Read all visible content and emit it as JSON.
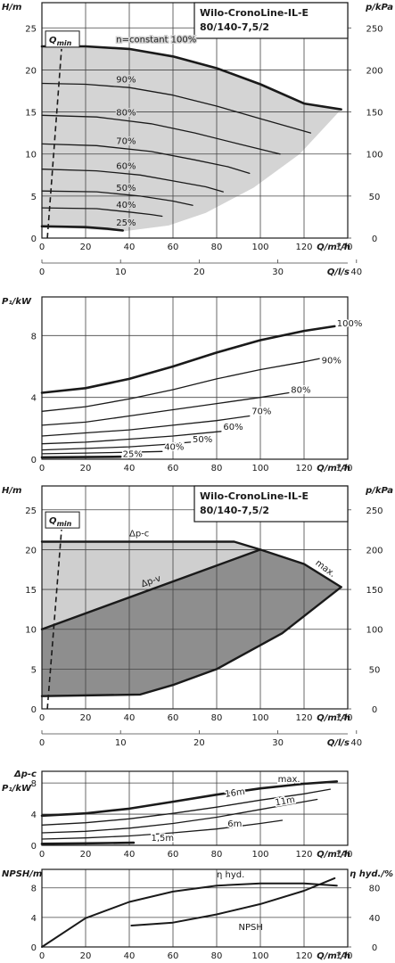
{
  "chart_data": [
    {
      "id": "H1",
      "type": "line",
      "title": [
        "Wilo-CronoLine-IL-E",
        "80/140-7,5/2"
      ],
      "ylabel": "H/m",
      "y2label": "p/kPa",
      "xlabel": "Q/m³/h",
      "x2label": "Q/l/s",
      "ylim": [
        0,
        28
      ],
      "xlim": [
        0,
        140
      ],
      "yticks": [
        0,
        5,
        10,
        15,
        20,
        25
      ],
      "y2ticks": [
        0,
        50,
        100,
        150,
        200,
        250
      ],
      "xticks": [
        0,
        20,
        40,
        60,
        80,
        100,
        120,
        140
      ],
      "x2ticks": [
        0,
        10,
        20,
        30,
        40
      ],
      "qmin_label": "Q",
      "qmin_sub": "min",
      "qmin_line": [
        [
          2.5,
          0
        ],
        [
          9,
          22.5
        ]
      ],
      "region": [
        [
          0,
          22.8
        ],
        [
          20,
          22.8
        ],
        [
          40,
          22.5
        ],
        [
          60,
          21.6
        ],
        [
          80,
          20.2
        ],
        [
          100,
          18.3
        ],
        [
          120,
          16
        ],
        [
          130,
          15.5
        ],
        [
          137,
          15.3
        ],
        [
          118,
          10
        ],
        [
          97,
          6
        ],
        [
          75,
          3
        ],
        [
          58,
          1.5
        ],
        [
          37,
          0.8
        ],
        [
          0,
          1.4
        ]
      ],
      "series": [
        {
          "name": "n=constant 100%",
          "points": [
            [
              0,
              22.8
            ],
            [
              20,
              22.8
            ],
            [
              40,
              22.5
            ],
            [
              60,
              21.6
            ],
            [
              80,
              20.2
            ],
            [
              100,
              18.3
            ],
            [
              120,
              16
            ],
            [
              137,
              15.3
            ]
          ]
        },
        {
          "name": "90%",
          "points": [
            [
              0,
              18.4
            ],
            [
              20,
              18.3
            ],
            [
              40,
              17.9
            ],
            [
              60,
              17
            ],
            [
              80,
              15.7
            ],
            [
              100,
              14.2
            ],
            [
              123,
              12.5
            ]
          ]
        },
        {
          "name": "80%",
          "points": [
            [
              0,
              14.6
            ],
            [
              25,
              14.4
            ],
            [
              50,
              13.6
            ],
            [
              70,
              12.5
            ],
            [
              90,
              11.2
            ],
            [
              109,
              10
            ]
          ]
        },
        {
          "name": "70%",
          "points": [
            [
              0,
              11.2
            ],
            [
              25,
              11
            ],
            [
              50,
              10.3
            ],
            [
              70,
              9.3
            ],
            [
              85,
              8.5
            ],
            [
              95,
              7.7
            ]
          ]
        },
        {
          "name": "60%",
          "points": [
            [
              0,
              8.2
            ],
            [
              25,
              8
            ],
            [
              45,
              7.5
            ],
            [
              60,
              6.8
            ],
            [
              75,
              6.1
            ],
            [
              83,
              5.5
            ]
          ]
        },
        {
          "name": "50%",
          "points": [
            [
              0,
              5.6
            ],
            [
              25,
              5.5
            ],
            [
              45,
              5
            ],
            [
              60,
              4.4
            ],
            [
              69,
              3.9
            ]
          ]
        },
        {
          "name": "40%",
          "points": [
            [
              0,
              3.6
            ],
            [
              25,
              3.5
            ],
            [
              40,
              3.1
            ],
            [
              50,
              2.8
            ],
            [
              55,
              2.6
            ]
          ]
        },
        {
          "name": "25%",
          "points": [
            [
              0,
              1.4
            ],
            [
              20,
              1.3
            ],
            [
              30,
              1.1
            ],
            [
              37,
              0.9
            ]
          ]
        }
      ],
      "labels": [
        {
          "text": "n=constant 100%",
          "x": 34,
          "y": 23.3
        },
        {
          "text": "90%",
          "x": 34,
          "y": 18.5
        },
        {
          "text": "80%",
          "x": 34,
          "y": 14.6
        },
        {
          "text": "70%",
          "x": 34,
          "y": 11.2
        },
        {
          "text": "60%",
          "x": 34,
          "y": 8.2
        },
        {
          "text": "50%",
          "x": 34,
          "y": 5.6
        },
        {
          "text": "40%",
          "x": 34,
          "y": 3.6
        },
        {
          "text": "25%",
          "x": 34,
          "y": 1.5
        }
      ]
    },
    {
      "id": "P1",
      "type": "line",
      "ylabel": "P₁/kW",
      "xlabel": "Q/m³/h",
      "ylim": [
        0,
        10.5
      ],
      "xlim": [
        0,
        140
      ],
      "yticks": [
        0,
        4,
        8
      ],
      "xticks": [
        0,
        20,
        40,
        60,
        80,
        100,
        120,
        140
      ],
      "series": [
        {
          "name": "100%",
          "points": [
            [
              0,
              4.3
            ],
            [
              20,
              4.6
            ],
            [
              40,
              5.2
            ],
            [
              60,
              6
            ],
            [
              80,
              6.9
            ],
            [
              100,
              7.7
            ],
            [
              120,
              8.3
            ],
            [
              134,
              8.6
            ]
          ]
        },
        {
          "name": "90%",
          "points": [
            [
              0,
              3.1
            ],
            [
              20,
              3.4
            ],
            [
              40,
              3.9
            ],
            [
              60,
              4.5
            ],
            [
              80,
              5.2
            ],
            [
              100,
              5.8
            ],
            [
              120,
              6.3
            ],
            [
              127,
              6.5
            ]
          ]
        },
        {
          "name": "80%",
          "points": [
            [
              0,
              2.2
            ],
            [
              20,
              2.4
            ],
            [
              40,
              2.8
            ],
            [
              60,
              3.2
            ],
            [
              80,
              3.6
            ],
            [
              100,
              4
            ],
            [
              113,
              4.3
            ]
          ]
        },
        {
          "name": "70%",
          "points": [
            [
              0,
              1.5
            ],
            [
              20,
              1.7
            ],
            [
              40,
              1.9
            ],
            [
              60,
              2.2
            ],
            [
              80,
              2.5
            ],
            [
              95,
              2.8
            ]
          ]
        },
        {
          "name": "60%",
          "points": [
            [
              0,
              1
            ],
            [
              20,
              1.1
            ],
            [
              40,
              1.3
            ],
            [
              60,
              1.5
            ],
            [
              82,
              1.8
            ]
          ]
        },
        {
          "name": "50%",
          "points": [
            [
              0,
              0.6
            ],
            [
              20,
              0.7
            ],
            [
              40,
              0.8
            ],
            [
              56,
              0.95
            ],
            [
              68,
              1.1
            ]
          ]
        },
        {
          "name": "40%",
          "points": [
            [
              0,
              0.35
            ],
            [
              20,
              0.4
            ],
            [
              40,
              0.45
            ],
            [
              55,
              0.5
            ]
          ]
        },
        {
          "name": "25%",
          "points": [
            [
              0,
              0.12
            ],
            [
              20,
              0.14
            ],
            [
              36,
              0.16
            ]
          ]
        }
      ],
      "labels": [
        {
          "text": "100%",
          "x": 135,
          "y": 8.6
        },
        {
          "text": "90%",
          "x": 128,
          "y": 6.2
        },
        {
          "text": "80%",
          "x": 114,
          "y": 4.3
        },
        {
          "text": "70%",
          "x": 96,
          "y": 2.9
        },
        {
          "text": "60%",
          "x": 83,
          "y": 1.9
        },
        {
          "text": "50%",
          "x": 69,
          "y": 1.1
        },
        {
          "text": "40%",
          "x": 56,
          "y": 0.6
        },
        {
          "text": "25%",
          "x": 37,
          "y": 0.15
        }
      ]
    },
    {
      "id": "H2",
      "type": "area",
      "title": [
        "Wilo-CronoLine-IL-E",
        "80/140-7,5/2"
      ],
      "ylabel": "H/m",
      "y2label": "p/kPa",
      "xlabel": "Q/m³/h",
      "x2label": "Q/l/s",
      "ylim": [
        0,
        28
      ],
      "xlim": [
        0,
        140
      ],
      "yticks": [
        0,
        5,
        10,
        15,
        20,
        25
      ],
      "y2ticks": [
        0,
        50,
        100,
        150,
        200,
        250
      ],
      "xticks": [
        0,
        20,
        40,
        60,
        80,
        100,
        120,
        140
      ],
      "x2ticks": [
        0,
        10,
        20,
        30,
        40
      ],
      "qmin_label": "Q",
      "qmin_sub": "min",
      "qmin_line": [
        [
          2.5,
          0
        ],
        [
          9,
          22.5
        ]
      ],
      "region_light": [
        [
          0,
          21
        ],
        [
          88,
          21
        ],
        [
          100,
          20
        ],
        [
          137,
          15.3
        ],
        [
          0,
          10
        ]
      ],
      "region_dark": [
        [
          0,
          10
        ],
        [
          100,
          20
        ],
        [
          120,
          18.2
        ],
        [
          137,
          15.3
        ],
        [
          110,
          9.5
        ],
        [
          80,
          5
        ],
        [
          60,
          3
        ],
        [
          45,
          1.8
        ],
        [
          0,
          1.6
        ]
      ],
      "series": [
        {
          "name": "Δp-c",
          "points": [
            [
              0,
              21
            ],
            [
              88,
              21
            ],
            [
              100,
              20
            ]
          ]
        },
        {
          "name": "Δp-v",
          "points": [
            [
              0,
              10
            ],
            [
              100,
              20
            ]
          ]
        },
        {
          "name": "max.",
          "points": [
            [
              100,
              20
            ],
            [
              120,
              18.2
            ],
            [
              137,
              15.3
            ]
          ]
        },
        {
          "name": "min",
          "points": [
            [
              0,
              1.6
            ],
            [
              45,
              1.8
            ],
            [
              60,
              3
            ],
            [
              80,
              5
            ],
            [
              110,
              9.5
            ],
            [
              137,
              15.3
            ]
          ]
        }
      ],
      "labels": [
        {
          "text": "Δp-c",
          "x": 40,
          "y": 21.7
        },
        {
          "text": "Δp-v",
          "x": 46,
          "y": 15.3,
          "rotate": -19
        },
        {
          "text": "max.",
          "x": 125,
          "y": 18.2,
          "rotate": 37
        }
      ]
    },
    {
      "id": "P2",
      "type": "line",
      "ylabel": "P₁/kW",
      "ylabel_top": "Δp-c",
      "xlabel": "Q/m³/h",
      "ylim": [
        0,
        9.5
      ],
      "xlim": [
        0,
        140
      ],
      "yticks": [
        0,
        4,
        8
      ],
      "xticks": [
        0,
        20,
        40,
        60,
        80,
        100,
        120,
        140
      ],
      "series": [
        {
          "name": "max.",
          "points": [
            [
              0,
              3.8
            ],
            [
              20,
              4.1
            ],
            [
              40,
              4.7
            ],
            [
              60,
              5.6
            ],
            [
              80,
              6.5
            ],
            [
              100,
              7.3
            ],
            [
              120,
              7.9
            ],
            [
              135,
              8.2
            ]
          ]
        },
        {
          "name": "16m",
          "points": [
            [
              0,
              2.6
            ],
            [
              20,
              2.9
            ],
            [
              40,
              3.4
            ],
            [
              60,
              4.1
            ],
            [
              80,
              4.9
            ],
            [
              100,
              5.8
            ],
            [
              120,
              6.6
            ],
            [
              132,
              7.2
            ]
          ]
        },
        {
          "name": "11m",
          "points": [
            [
              0,
              1.6
            ],
            [
              20,
              1.8
            ],
            [
              40,
              2.2
            ],
            [
              60,
              2.8
            ],
            [
              80,
              3.6
            ],
            [
              100,
              4.6
            ],
            [
              120,
              5.6
            ],
            [
              126,
              5.9
            ]
          ]
        },
        {
          "name": "6m",
          "points": [
            [
              0,
              0.8
            ],
            [
              20,
              0.95
            ],
            [
              40,
              1.2
            ],
            [
              60,
              1.6
            ],
            [
              80,
              2.1
            ],
            [
              100,
              2.8
            ],
            [
              110,
              3.2
            ]
          ]
        },
        {
          "name": "1,5m",
          "points": [
            [
              0,
              0.2
            ],
            [
              20,
              0.25
            ],
            [
              42,
              0.33
            ]
          ]
        }
      ],
      "labels": [
        {
          "text": "max.",
          "x": 108,
          "y": 8.1
        },
        {
          "text": "16m",
          "x": 84,
          "y": 6.2,
          "rotate": -8
        },
        {
          "text": "11m",
          "x": 107,
          "y": 5.1,
          "rotate": -10
        },
        {
          "text": "6m",
          "x": 85,
          "y": 2.4
        },
        {
          "text": "1,5m",
          "x": 50,
          "y": 0.6
        }
      ]
    },
    {
      "id": "NPSH",
      "type": "line",
      "ylabel": "NPSH/m",
      "y2label": "η hyd./%",
      "xlabel": "Q/m³/h",
      "ylim": [
        0,
        10.5
      ],
      "xlim": [
        0,
        140
      ],
      "yticks": [
        0,
        4,
        8
      ],
      "y2ticks": [
        0,
        40,
        80
      ],
      "xticks": [
        0,
        20,
        40,
        60,
        80,
        100,
        120,
        140
      ],
      "series": [
        {
          "name": "η hyd.",
          "axis": "right",
          "points": [
            [
              0,
              0
            ],
            [
              20,
              39
            ],
            [
              40,
              61
            ],
            [
              60,
              75
            ],
            [
              80,
              83
            ],
            [
              100,
              86
            ],
            [
              120,
              86
            ],
            [
              135,
              83
            ]
          ]
        },
        {
          "name": "NPSH",
          "axis": "left",
          "points": [
            [
              41,
              2.9
            ],
            [
              60,
              3.3
            ],
            [
              80,
              4.4
            ],
            [
              100,
              5.8
            ],
            [
              120,
              7.6
            ],
            [
              134,
              9.3
            ]
          ]
        }
      ],
      "labels": [
        {
          "text": "η hyd.",
          "x": 80,
          "y": 9.4
        },
        {
          "text": "NPSH",
          "x": 90,
          "y": 2.3
        }
      ]
    }
  ]
}
